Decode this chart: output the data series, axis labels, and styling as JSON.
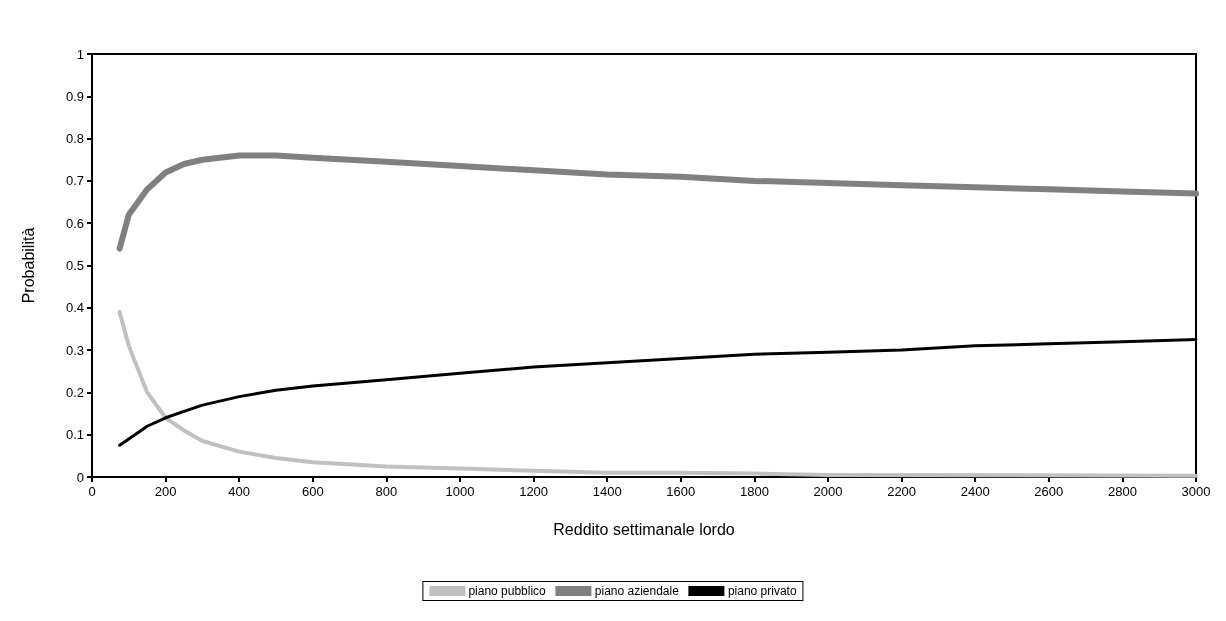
{
  "chart_data": {
    "type": "line",
    "xlabel": "Reddito settimanale lordo",
    "ylabel": "Probabilità",
    "xlim": [
      0,
      3000
    ],
    "xticks": [
      0,
      200,
      400,
      600,
      800,
      1000,
      1200,
      1400,
      1600,
      1800,
      2000,
      2200,
      2400,
      2600,
      2800,
      3000
    ],
    "ylim": [
      0,
      1
    ],
    "yticks": [
      0,
      0.1,
      0.2,
      0.3,
      0.4,
      0.5,
      0.6,
      0.7,
      0.8,
      0.9,
      1
    ],
    "grid": false,
    "legend": "bottom",
    "marker": "none",
    "line_style": "solid",
    "series": [
      {
        "name": "piano pubblico",
        "color": "#c0c0c0",
        "x": [
          75,
          100,
          150,
          200,
          250,
          300,
          400,
          500,
          600,
          800,
          1000,
          1200,
          1400,
          1600,
          1800,
          2000,
          2500,
          3000
        ],
        "values": [
          0.39,
          0.31,
          0.2,
          0.14,
          0.11,
          0.085,
          0.06,
          0.045,
          0.035,
          0.025,
          0.02,
          0.015,
          0.01,
          0.01,
          0.008,
          0.005,
          0.004,
          0.003
        ]
      },
      {
        "name": "piano aziendale",
        "color": "#808080",
        "x": [
          75,
          100,
          150,
          200,
          250,
          300,
          400,
          500,
          600,
          800,
          1000,
          1200,
          1400,
          1600,
          1800,
          2000,
          2200,
          2400,
          2600,
          2800,
          3000
        ],
        "values": [
          0.54,
          0.62,
          0.68,
          0.72,
          0.74,
          0.75,
          0.76,
          0.76,
          0.755,
          0.745,
          0.735,
          0.725,
          0.715,
          0.71,
          0.7,
          0.695,
          0.69,
          0.685,
          0.68,
          0.675,
          0.67
        ]
      },
      {
        "name": "piano privato",
        "color": "#000000",
        "x": [
          75,
          100,
          150,
          200,
          250,
          300,
          400,
          500,
          600,
          800,
          1000,
          1200,
          1400,
          1600,
          1800,
          2000,
          2200,
          2400,
          2600,
          2800,
          3000
        ],
        "values": [
          0.075,
          0.09,
          0.12,
          0.14,
          0.155,
          0.17,
          0.19,
          0.205,
          0.215,
          0.23,
          0.245,
          0.26,
          0.27,
          0.28,
          0.29,
          0.295,
          0.3,
          0.31,
          0.315,
          0.32,
          0.325
        ]
      }
    ]
  }
}
